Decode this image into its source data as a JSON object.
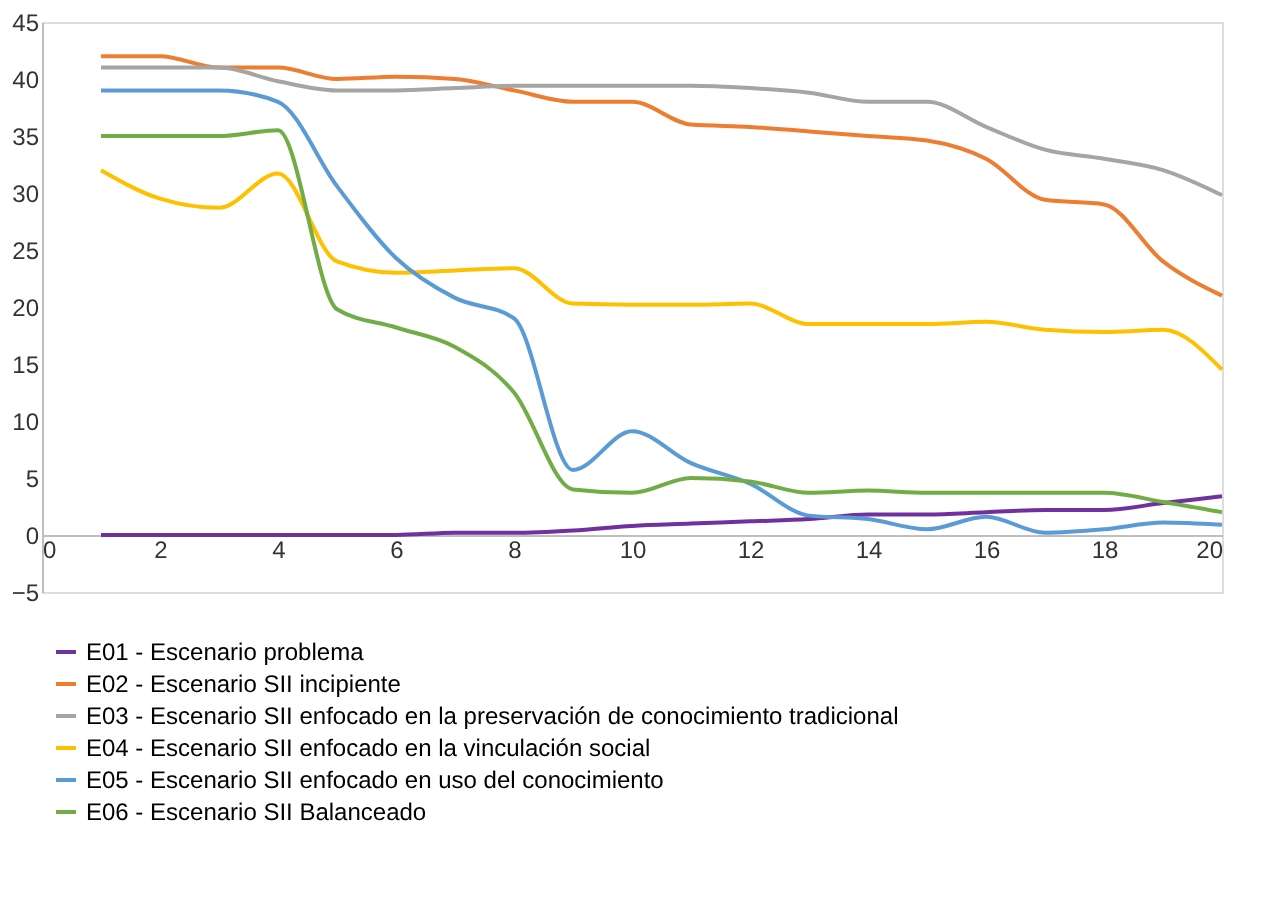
{
  "chart_data": {
    "type": "line",
    "x": [
      1,
      2,
      3,
      4,
      5,
      6,
      7,
      8,
      9,
      10,
      11,
      12,
      13,
      14,
      15,
      16,
      17,
      18,
      19,
      20
    ],
    "xlim": [
      0,
      20
    ],
    "xticks": [
      0,
      2,
      4,
      6,
      8,
      10,
      12,
      14,
      16,
      18,
      20
    ],
    "ylim": [
      -5,
      45
    ],
    "yticks": [
      -5,
      0,
      5,
      10,
      15,
      20,
      25,
      30,
      35,
      40,
      45
    ],
    "grid": false,
    "legend": "bottom",
    "line_style": "solid",
    "marker": "none",
    "series": [
      {
        "name": "E01 - Escenario problema",
        "color": "#7030a0",
        "values": [
          0,
          0,
          0,
          0,
          0,
          0,
          0.2,
          0.2,
          0.4,
          0.8,
          1,
          1.2,
          1.4,
          1.8,
          1.8,
          2,
          2.2,
          2.2,
          2.8,
          3.4
        ]
      },
      {
        "name": "E02 - Escenario SII incipiente",
        "color": "#ed7d31",
        "values": [
          42,
          42,
          41,
          41,
          40,
          40.2,
          40,
          39,
          38,
          38,
          36,
          35.8,
          35.4,
          35,
          34.6,
          33,
          29.4,
          29,
          24,
          21
        ]
      },
      {
        "name": "E03 - Escenario SII enfocado en la preservación de conocimiento tradicional",
        "color": "#a5a5a5",
        "values": [
          41,
          41,
          41,
          39.8,
          39,
          39,
          39.2,
          39.4,
          39.4,
          39.4,
          39.4,
          39.2,
          38.8,
          38,
          38,
          35.8,
          33.8,
          33,
          32,
          29.8
        ]
      },
      {
        "name": "E04 - Escenario SII enfocado en la vinculación social",
        "color": "#ffc000",
        "values": [
          32,
          29.5,
          28.7,
          31.7,
          24,
          23,
          23.2,
          23.4,
          20.3,
          20.2,
          20.2,
          20.3,
          18.5,
          18.5,
          18.5,
          18.7,
          18,
          17.8,
          18,
          14.5
        ]
      },
      {
        "name": "E05 - Escenario SII enfocado en uso del conocimiento",
        "color": "#5b9bd5",
        "values": [
          39,
          39,
          39,
          38,
          30.6,
          24.3,
          20.8,
          19,
          5.7,
          9.1,
          6.3,
          4.5,
          1.7,
          1.4,
          0.5,
          1.6,
          0.2,
          0.5,
          1.1,
          0.9
        ]
      },
      {
        "name": "E06 - Escenario SII Balanceado",
        "color": "#70ad47",
        "values": [
          35,
          35,
          35,
          35.5,
          19.8,
          18.2,
          16.5,
          12.5,
          4,
          3.7,
          5,
          4.7,
          3.7,
          3.9,
          3.7,
          3.7,
          3.7,
          3.7,
          2.9,
          2
        ]
      }
    ]
  }
}
